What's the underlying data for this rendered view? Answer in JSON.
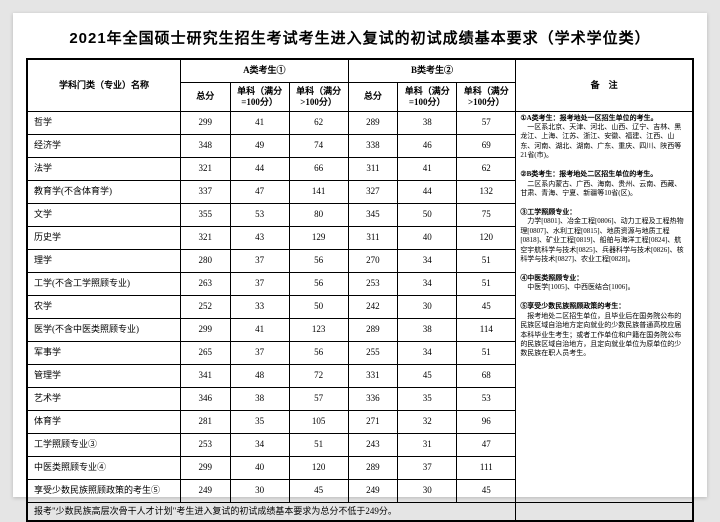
{
  "title": "2021年全国硕士研究生招生考试考生进入复试的初试成绩基本要求（学术学位类）",
  "header": {
    "major": "学科门类（专业）名称",
    "groupA": "A类考生①",
    "groupB": "B类考生②",
    "notes": "备　注",
    "total": "总分",
    "sub100": "单科（满分=100分）",
    "subOver100": "单科（满分>100分）"
  },
  "rows": [
    {
      "name": "哲学",
      "a": [
        299,
        41,
        62
      ],
      "b": [
        289,
        38,
        57
      ]
    },
    {
      "name": "经济学",
      "a": [
        348,
        49,
        74
      ],
      "b": [
        338,
        46,
        69
      ]
    },
    {
      "name": "法学",
      "a": [
        321,
        44,
        66
      ],
      "b": [
        311,
        41,
        62
      ]
    },
    {
      "name": "教育学(不含体育学)",
      "a": [
        337,
        47,
        141
      ],
      "b": [
        327,
        44,
        132
      ]
    },
    {
      "name": "文学",
      "a": [
        355,
        53,
        80
      ],
      "b": [
        345,
        50,
        75
      ]
    },
    {
      "name": "历史学",
      "a": [
        321,
        43,
        129
      ],
      "b": [
        311,
        40,
        120
      ]
    },
    {
      "name": "理学",
      "a": [
        280,
        37,
        56
      ],
      "b": [
        270,
        34,
        51
      ]
    },
    {
      "name": "工学(不含工学照顾专业)",
      "a": [
        263,
        37,
        56
      ],
      "b": [
        253,
        34,
        51
      ]
    },
    {
      "name": "农学",
      "a": [
        252,
        33,
        50
      ],
      "b": [
        242,
        30,
        45
      ]
    },
    {
      "name": "医学(不含中医类照顾专业)",
      "a": [
        299,
        41,
        123
      ],
      "b": [
        289,
        38,
        114
      ]
    },
    {
      "name": "军事学",
      "a": [
        265,
        37,
        56
      ],
      "b": [
        255,
        34,
        51
      ]
    },
    {
      "name": "管理学",
      "a": [
        341,
        48,
        72
      ],
      "b": [
        331,
        45,
        68
      ]
    },
    {
      "name": "艺术学",
      "a": [
        346,
        38,
        57
      ],
      "b": [
        336,
        35,
        53
      ]
    },
    {
      "name": "体育学",
      "a": [
        281,
        35,
        105
      ],
      "b": [
        271,
        32,
        96
      ]
    },
    {
      "name": "工学照顾专业③",
      "a": [
        253,
        34,
        51
      ],
      "b": [
        243,
        31,
        47
      ]
    },
    {
      "name": "中医类照顾专业④",
      "a": [
        299,
        40,
        120
      ],
      "b": [
        289,
        37,
        111
      ]
    },
    {
      "name": "享受少数民族照顾政策的考生⑤",
      "a": [
        249,
        30,
        45
      ],
      "b": [
        249,
        30,
        45
      ]
    }
  ],
  "footnote": "报考\"少数民族高层次骨干人才计划\"考生进入复试的初试成绩基本要求为总分不低于249分。",
  "notes": {
    "n1_t": "①A类考生：报考地处一区招生单位的考生。",
    "n1_b": "　一区系北京、天津、河北、山西、辽宁、吉林、黑龙江、上海、江苏、浙江、安徽、福建、江西、山东、河南、湖北、湖南、广东、重庆、四川、陕西等21省(市)。",
    "n2_t": "②B类考生：报考地处二区招生单位的考生。",
    "n2_b": "　二区系内蒙古、广西、海南、贵州、云南、西藏、甘肃、青海、宁夏、新疆等10省(区)。",
    "n3_t": "③工学照顾专业：",
    "n3_b": "　力学[0801]、冶金工程[0806]、动力工程及工程热物理[0807]、水利工程[0815]、地质资源与地质工程[0818]、矿业工程[0819]、船舶与海洋工程[0824]、航空宇航科学与技术[0825]、兵器科学与技术[0826]、核科学与技术[0827]、农业工程[0828]。",
    "n4_t": "④中医类照顾专业：",
    "n4_b": "　中医学[1005]、中西医结合[1006]。",
    "n5_t": "⑤享受少数民族照顾政策的考生：",
    "n5_b": "　报考地处二区招生单位，且毕业后在国务院公布的民族区域自治地方定向就业的少数民族普通高校应届本科毕业生考生；或者工作单位和户籍在国务院公布的民族区域自治地方，且定向就业单位为原单位的少数民族在职人员考生。"
  }
}
